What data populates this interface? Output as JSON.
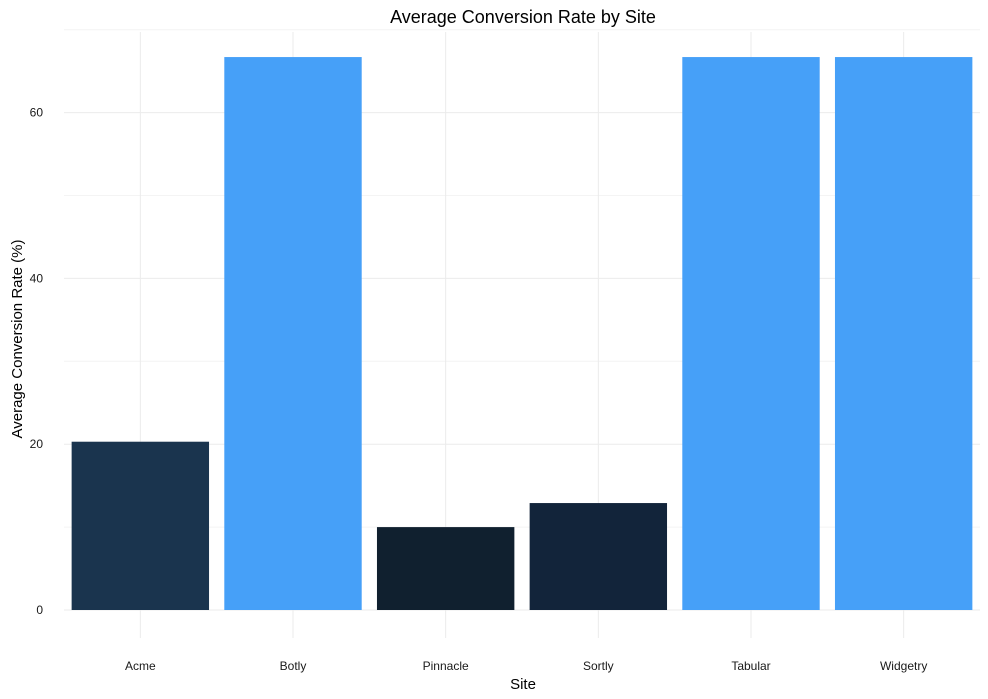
{
  "chart_data": {
    "type": "bar",
    "title": "Average Conversion Rate by Site",
    "xlabel": "Site",
    "ylabel": "Average Conversion Rate (%)",
    "categories": [
      "Acme",
      "Botly",
      "Pinnacle",
      "Sortly",
      "Tabular",
      "Widgetry"
    ],
    "values": [
      20.3,
      66.7,
      10.0,
      12.9,
      66.7,
      66.7
    ],
    "colors": [
      "#1a344e",
      "#46a0f8",
      "#10202f",
      "#12243a",
      "#46a0f8",
      "#46a0f8"
    ],
    "yticks": [
      0,
      20,
      40,
      60
    ],
    "ylim": [
      0,
      70
    ],
    "grid": true,
    "legend": "none"
  }
}
